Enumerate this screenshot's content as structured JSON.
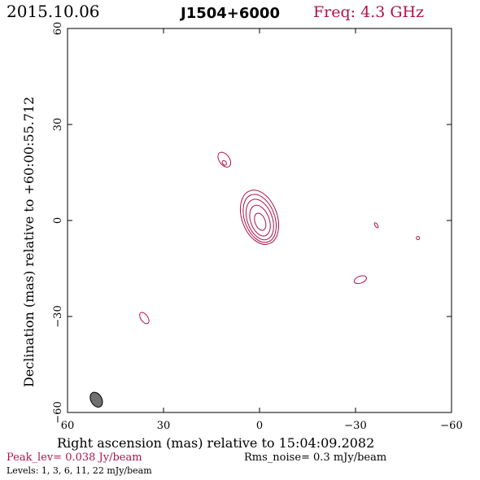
{
  "header": {
    "date": "2015.10.06",
    "source": "J1504+6000",
    "freq": "Freq: 4.3 GHz"
  },
  "footer": {
    "peak": "Peak_lev=  0.038 Jy/beam",
    "rms": "Rms_noise=  0.3 mJy/beam",
    "levels": "Levels:   1,   3,   6,  11,  22 mJy/beam"
  },
  "colors": {
    "contour": "#b0124a",
    "beam": "#707070"
  },
  "chart_data": {
    "type": "contour",
    "xlabel": "Right ascension (mas) relative to 15:04:09.2082",
    "ylabel": "Declination (mas) relative to +60:00:55.712",
    "xlim": [
      60,
      -60
    ],
    "ylim": [
      -60,
      60
    ],
    "xticks": [
      60,
      30,
      0,
      -30,
      -60
    ],
    "yticks": [
      60,
      30,
      0,
      -30,
      -60
    ],
    "xtick_labels": [
      "60",
      "30",
      "0",
      "−30",
      "−60"
    ],
    "ytick_labels": [
      "60",
      "30",
      "0",
      "−30",
      "−60"
    ],
    "levels_mJy_per_beam": [
      1,
      3,
      6,
      11,
      22
    ],
    "peak_Jy_per_beam": 0.038,
    "rms_mJy_per_beam": 0.3,
    "main_component": {
      "x": 0,
      "y": 1,
      "contours": [
        {
          "level": 1,
          "a": 5.5,
          "b": 8.8,
          "pa": 20
        },
        {
          "level": 3,
          "a": 4.7,
          "b": 7.8,
          "pa": 20
        },
        {
          "level": 6,
          "a": 3.9,
          "b": 6.6,
          "pa": 20
        },
        {
          "level": 11,
          "a": 2.9,
          "b": 5.0,
          "pa": 20
        },
        {
          "level": 22,
          "a": 1.6,
          "b": 2.8,
          "pa": 20
        }
      ]
    },
    "minor_components": [
      {
        "x": 11,
        "y": 19,
        "a": 1.6,
        "b": 2.6,
        "pa": 35
      },
      {
        "x": 11,
        "y": 18,
        "a": 0.6,
        "b": 0.8,
        "pa": 35
      },
      {
        "x": 36,
        "y": -30.5,
        "a": 1.1,
        "b": 2.0,
        "pa": 35
      },
      {
        "x": -31.5,
        "y": -18.5,
        "a": 2.0,
        "b": 1.1,
        "pa": 20
      },
      {
        "x": -36.5,
        "y": -1.5,
        "a": 0.4,
        "b": 0.9,
        "pa": 35
      },
      {
        "x": -49.5,
        "y": -5.5,
        "a": 0.5,
        "b": 0.5,
        "pa": 0
      }
    ],
    "beam": {
      "x": 51,
      "y": -56,
      "a": 1.7,
      "b": 2.5,
      "pa": 30
    }
  }
}
